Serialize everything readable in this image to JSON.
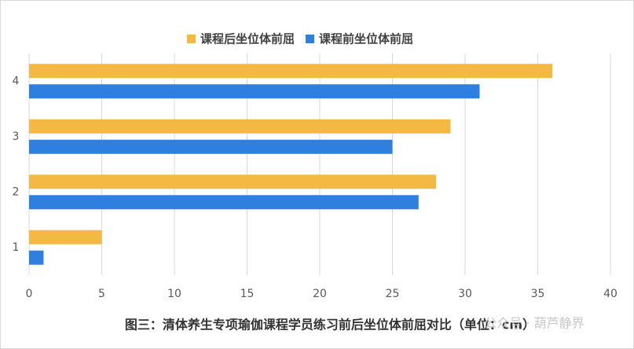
{
  "chart_data": {
    "type": "bar",
    "orientation": "horizontal",
    "caption": "图三：清体养生专项瑜伽课程学员练习前后坐位体前屈对比（单位：cm）",
    "watermark": "公众号 · 葫芦静界",
    "categories": [
      "1",
      "2",
      "3",
      "4"
    ],
    "series": [
      {
        "name": "课程后坐位体前屈",
        "color": "#F4B942",
        "values": [
          5,
          28,
          29,
          36
        ]
      },
      {
        "name": "课程前坐位体前屈",
        "color": "#2F7FE0",
        "values": [
          1,
          26.8,
          25,
          31
        ]
      }
    ],
    "xlim": [
      0,
      40
    ],
    "xticks": [
      0,
      5,
      10,
      15,
      20,
      25,
      30,
      35,
      40
    ],
    "grid": true,
    "legend": "top"
  }
}
